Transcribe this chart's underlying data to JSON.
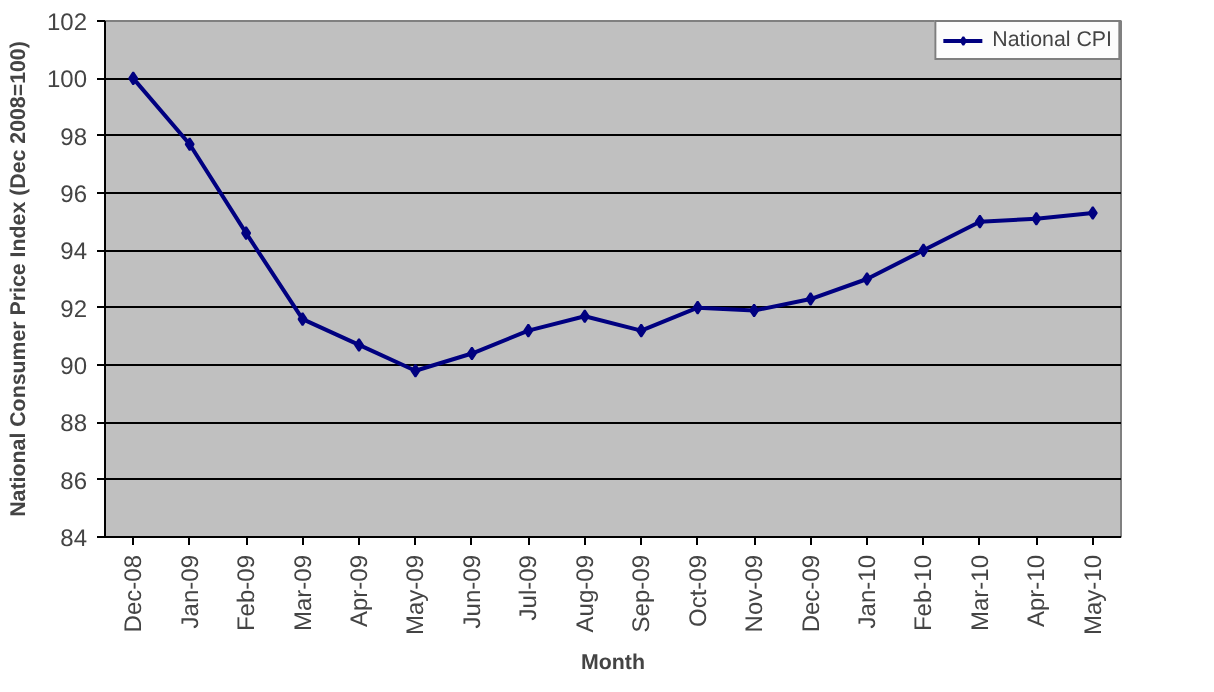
{
  "chart_data": {
    "type": "line",
    "xlabel": "Month",
    "ylabel": "National Consumer Price Index (Dec 2008=100)",
    "categories": [
      "Dec-08",
      "Jan-09",
      "Feb-09",
      "Mar-09",
      "Apr-09",
      "May-09",
      "Jun-09",
      "Jul-09",
      "Aug-09",
      "Sep-09",
      "Oct-09",
      "Nov-09",
      "Dec-09",
      "Jan-10",
      "Feb-10",
      "Mar-10",
      "Apr-10",
      "May-10"
    ],
    "series": [
      {
        "name": "National CPI",
        "color": "#000080",
        "values": [
          100,
          97.7,
          94.6,
          91.6,
          90.7,
          89.8,
          90.4,
          91.2,
          91.7,
          91.2,
          92.0,
          91.9,
          92.3,
          93.0,
          94.0,
          95.0,
          95.1,
          95.3
        ]
      }
    ],
    "ylim": [
      84,
      102
    ],
    "yticks": [
      84,
      86,
      88,
      90,
      92,
      94,
      96,
      98,
      100,
      102
    ],
    "grid": "y",
    "legend": "top right",
    "marker": "diamond",
    "line_style": "solid"
  }
}
